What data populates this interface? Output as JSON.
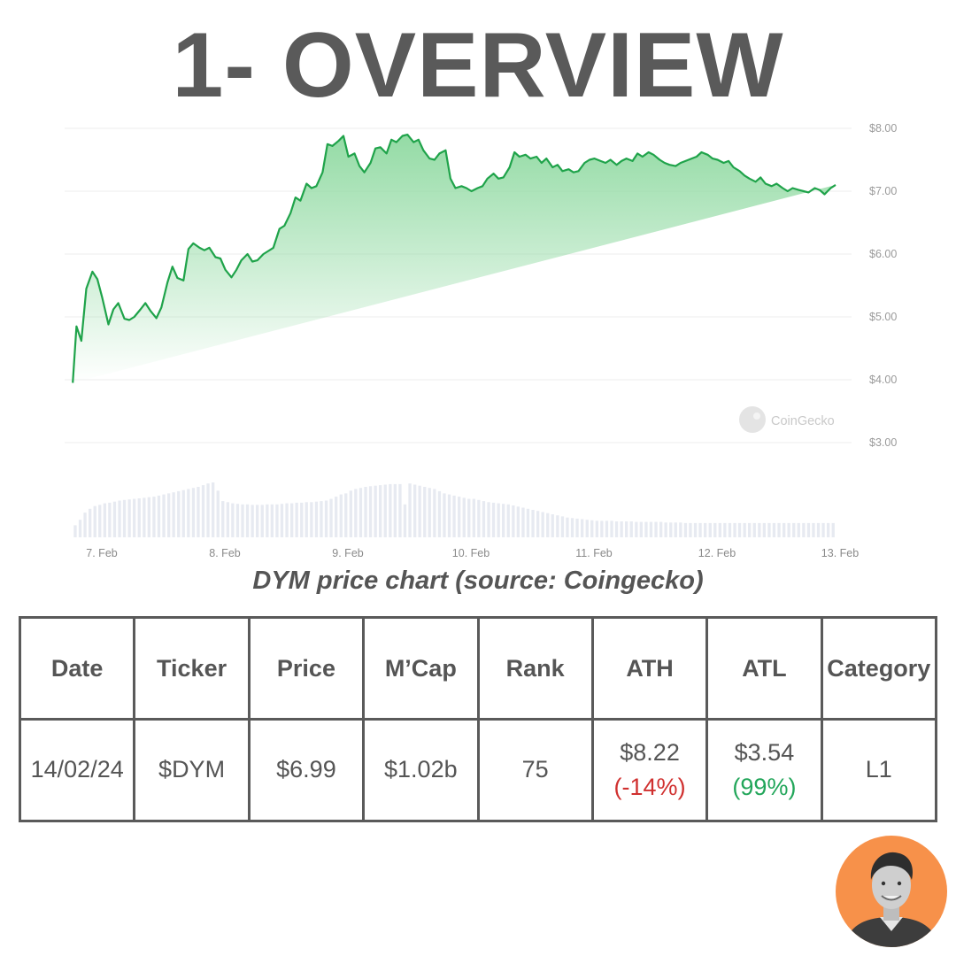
{
  "title": "1- OVERVIEW",
  "caption": "DYM price chart (source: Coingecko)",
  "chart_data": {
    "type": "area",
    "title": "",
    "xlabel": "",
    "ylabel": "",
    "ylim": [
      3.0,
      8.0
    ],
    "xlim": [
      0,
      6.3
    ],
    "yticks": [
      "$8.00",
      "$7.00",
      "$6.00",
      "$5.00",
      "$4.00",
      "$3.00"
    ],
    "ytick_values": [
      8,
      7,
      6,
      5,
      4,
      3
    ],
    "xticks": [
      "7. Feb",
      "8. Feb",
      "9. Feb",
      "10. Feb",
      "11. Feb",
      "12. Feb",
      "13. Feb"
    ],
    "xtick_values": [
      0,
      1,
      2,
      3,
      4,
      5,
      6
    ],
    "grid": true,
    "line_color": "#1fa34a",
    "fill_color": "#8ed9a0",
    "watermark": "CoinGecko",
    "price_x": [
      -0.2,
      -0.17,
      -0.13,
      -0.09,
      -0.04,
      0.0,
      0.04,
      0.09,
      0.13,
      0.17,
      0.22,
      0.26,
      0.3,
      0.35,
      0.39,
      0.43,
      0.48,
      0.52,
      0.57,
      0.61,
      0.65,
      0.7,
      0.74,
      0.78,
      0.83,
      0.87,
      0.91,
      0.96,
      1.0,
      1.04,
      1.09,
      1.13,
      1.17,
      1.22,
      1.26,
      1.3,
      1.35,
      1.39,
      1.43,
      1.48,
      1.52,
      1.57,
      1.61,
      1.65,
      1.7,
      1.74,
      1.78,
      1.83,
      1.87,
      1.91,
      1.96,
      2.0,
      2.04,
      2.09,
      2.13,
      2.17,
      2.22,
      2.26,
      2.3,
      2.35,
      2.39,
      2.43,
      2.48,
      2.52,
      2.57,
      2.61,
      2.65,
      2.7,
      2.74,
      2.78,
      2.83,
      2.87,
      2.91,
      2.96,
      3.0,
      3.04,
      3.09,
      3.13,
      3.17,
      3.22,
      3.26,
      3.3,
      3.35,
      3.39,
      3.43,
      3.48,
      3.52,
      3.57,
      3.61,
      3.65,
      3.7,
      3.74,
      3.78,
      3.83,
      3.87,
      3.91,
      3.96,
      4.0,
      4.04,
      4.09,
      4.13,
      4.17,
      4.22,
      4.26,
      4.3,
      4.35,
      4.39,
      4.43,
      4.48,
      4.52,
      4.57,
      4.61,
      4.65,
      4.7,
      4.74,
      4.78,
      4.83,
      4.87,
      4.91,
      4.96,
      5.0,
      5.04,
      5.09,
      5.13,
      5.17,
      5.22,
      5.26,
      5.3,
      5.35,
      5.39,
      5.43,
      5.48,
      5.52,
      5.57,
      5.61,
      5.65,
      5.7,
      5.74,
      5.78,
      5.83,
      5.87,
      5.91,
      5.96,
      6.0,
      6.04,
      6.09,
      6.13
    ],
    "price_y": [
      3.95,
      4.85,
      4.62,
      5.45,
      5.72,
      5.6,
      5.3,
      4.88,
      5.12,
      5.22,
      4.97,
      4.95,
      5.0,
      5.12,
      5.22,
      5.1,
      4.98,
      5.15,
      5.55,
      5.8,
      5.62,
      5.58,
      6.08,
      6.17,
      6.1,
      6.06,
      6.1,
      5.95,
      5.93,
      5.75,
      5.63,
      5.75,
      5.9,
      6.0,
      5.88,
      5.9,
      6.0,
      6.05,
      6.1,
      6.4,
      6.45,
      6.65,
      6.9,
      6.85,
      7.12,
      7.05,
      7.08,
      7.3,
      7.75,
      7.72,
      7.8,
      7.88,
      7.55,
      7.6,
      7.4,
      7.3,
      7.45,
      7.68,
      7.7,
      7.6,
      7.82,
      7.78,
      7.88,
      7.9,
      7.78,
      7.82,
      7.65,
      7.52,
      7.5,
      7.6,
      7.65,
      7.2,
      7.05,
      7.08,
      7.05,
      7.0,
      7.05,
      7.08,
      7.2,
      7.28,
      7.2,
      7.22,
      7.38,
      7.62,
      7.55,
      7.58,
      7.52,
      7.55,
      7.45,
      7.52,
      7.38,
      7.42,
      7.32,
      7.35,
      7.3,
      7.32,
      7.45,
      7.5,
      7.52,
      7.48,
      7.45,
      7.5,
      7.42,
      7.48,
      7.52,
      7.48,
      7.6,
      7.55,
      7.62,
      7.58,
      7.5,
      7.45,
      7.42,
      7.4,
      7.45,
      7.48,
      7.52,
      7.55,
      7.62,
      7.58,
      7.52,
      7.5,
      7.45,
      7.48,
      7.38,
      7.32,
      7.25,
      7.2,
      7.15,
      7.22,
      7.12,
      7.08,
      7.12,
      7.05,
      7.0,
      7.05,
      7.02,
      7.0,
      6.98,
      7.05,
      7.02,
      6.95,
      7.05,
      7.1
    ],
    "volume_x": [
      -0.18,
      -0.14,
      -0.1,
      -0.06,
      -0.02,
      0.02,
      0.06,
      0.1,
      0.14,
      0.18,
      0.22,
      0.26,
      0.3,
      0.34,
      0.38,
      0.42,
      0.46,
      0.5,
      0.54,
      0.58,
      0.62,
      0.66,
      0.7,
      0.74,
      0.78,
      0.82,
      0.86,
      0.9,
      0.94,
      0.98,
      1.02,
      1.06,
      1.1,
      1.14,
      1.18,
      1.22,
      1.26,
      1.3,
      1.34,
      1.38,
      1.42,
      1.46,
      1.5,
      1.54,
      1.58,
      1.62,
      1.66,
      1.7,
      1.74,
      1.78,
      1.82,
      1.86,
      1.9,
      1.94,
      1.98,
      2.02,
      2.06,
      2.1,
      2.14,
      2.18,
      2.22,
      2.26,
      2.3,
      2.34,
      2.38,
      2.42,
      2.46,
      2.5,
      2.54,
      2.58,
      2.62,
      2.66,
      2.7,
      2.74,
      2.78,
      2.82,
      2.86,
      2.9,
      2.94,
      2.98,
      3.02,
      3.06,
      3.1,
      3.14,
      3.18,
      3.22,
      3.26,
      3.3,
      3.34,
      3.38,
      3.42,
      3.46,
      3.5,
      3.54,
      3.58,
      3.62,
      3.66,
      3.7,
      3.74,
      3.78,
      3.82,
      3.86,
      3.9,
      3.94,
      3.98,
      4.02,
      4.06,
      4.1,
      4.14,
      4.18,
      4.22,
      4.26,
      4.3,
      4.34,
      4.38,
      4.42,
      4.46,
      4.5,
      4.54,
      4.58,
      4.62,
      4.66,
      4.7,
      4.74,
      4.78,
      4.82,
      4.86,
      4.9,
      4.94,
      4.98,
      5.02,
      5.06,
      5.1,
      5.14,
      5.18,
      5.22,
      5.26,
      5.3,
      5.34,
      5.38,
      5.42,
      5.46,
      5.5,
      5.54,
      5.58,
      5.62,
      5.66,
      5.7,
      5.74,
      5.78,
      5.82,
      5.86,
      5.9,
      5.94,
      5.98,
      6.02,
      6.06,
      6.1,
      6.14
    ],
    "volume_rel": [
      0.22,
      0.32,
      0.45,
      0.52,
      0.57,
      0.59,
      0.62,
      0.63,
      0.65,
      0.67,
      0.68,
      0.69,
      0.7,
      0.71,
      0.72,
      0.73,
      0.74,
      0.76,
      0.78,
      0.8,
      0.82,
      0.84,
      0.86,
      0.88,
      0.9,
      0.92,
      0.95,
      0.98,
      1.0,
      0.85,
      0.66,
      0.64,
      0.62,
      0.61,
      0.6,
      0.6,
      0.59,
      0.59,
      0.59,
      0.6,
      0.6,
      0.6,
      0.61,
      0.62,
      0.62,
      0.63,
      0.63,
      0.64,
      0.64,
      0.65,
      0.66,
      0.67,
      0.7,
      0.74,
      0.78,
      0.8,
      0.85,
      0.88,
      0.9,
      0.92,
      0.93,
      0.94,
      0.95,
      0.96,
      0.97,
      0.97,
      0.97,
      0.6,
      0.98,
      0.96,
      0.94,
      0.92,
      0.9,
      0.88,
      0.84,
      0.8,
      0.78,
      0.76,
      0.74,
      0.72,
      0.7,
      0.7,
      0.68,
      0.66,
      0.64,
      0.63,
      0.62,
      0.61,
      0.6,
      0.58,
      0.56,
      0.54,
      0.52,
      0.5,
      0.48,
      0.46,
      0.44,
      0.42,
      0.4,
      0.38,
      0.36,
      0.35,
      0.34,
      0.33,
      0.32,
      0.31,
      0.3,
      0.3,
      0.3,
      0.3,
      0.29,
      0.29,
      0.29,
      0.29,
      0.28,
      0.28,
      0.28,
      0.28,
      0.28,
      0.28,
      0.27,
      0.27,
      0.27,
      0.27,
      0.26,
      0.26,
      0.26,
      0.26,
      0.26,
      0.26,
      0.26,
      0.26,
      0.26,
      0.26,
      0.26,
      0.26,
      0.26,
      0.26,
      0.26,
      0.26,
      0.26,
      0.26,
      0.26,
      0.26,
      0.26,
      0.26,
      0.26,
      0.26,
      0.26,
      0.26,
      0.26,
      0.26,
      0.26,
      0.26,
      0.26
    ]
  },
  "table": {
    "headers": [
      "Date",
      "Ticker",
      "Price",
      "M’Cap",
      "Rank",
      "ATH",
      "ATL",
      "Category"
    ],
    "row": {
      "date": "14/02/24",
      "ticker": "$DYM",
      "price": "$6.99",
      "mcap": "$1.02b",
      "rank": "75",
      "ath": "$8.22",
      "ath_change": "(-14%)",
      "atl": "$3.54",
      "atl_change": "(99%)",
      "category": "L1"
    }
  },
  "colors": {
    "negative": "#d0302f",
    "positive": "#22a65a",
    "avatar_bg": "#f7914a"
  }
}
